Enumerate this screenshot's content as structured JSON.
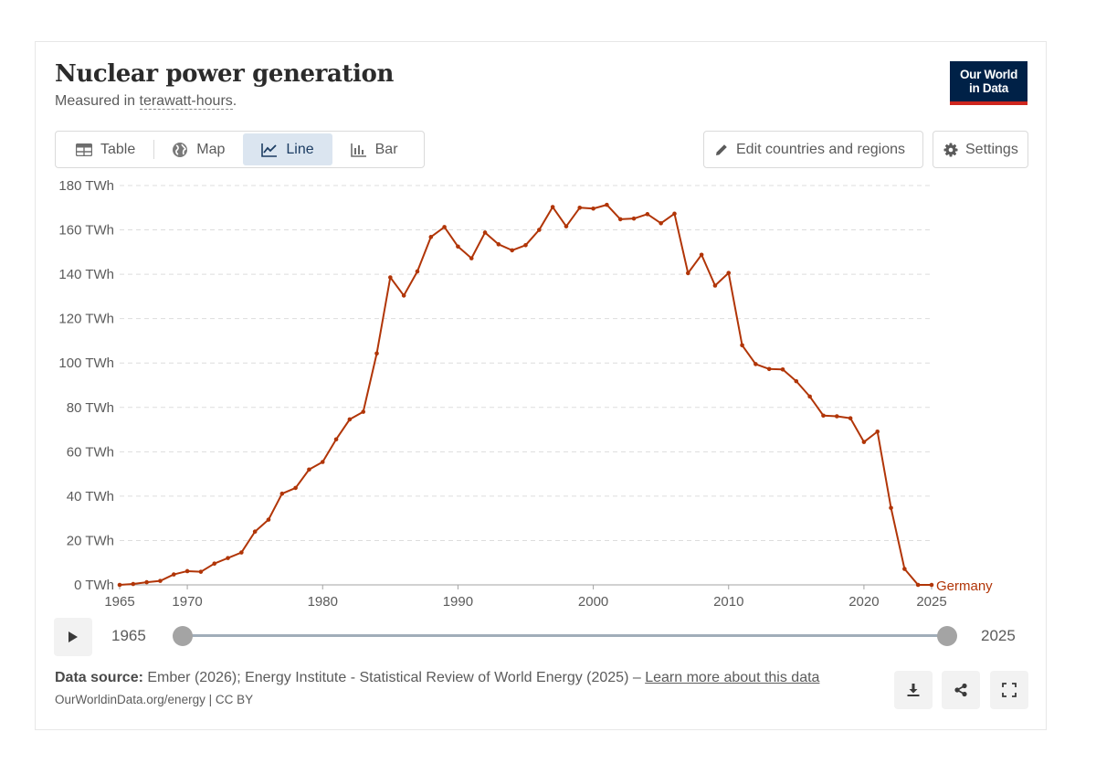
{
  "header": {
    "title": "Nuclear power generation",
    "subtitle_prefix": "Measured in ",
    "subtitle_unit": "terawatt-hours",
    "subtitle_suffix": ".",
    "logo_line1": "Our World",
    "logo_line2": "in Data"
  },
  "tabs": [
    {
      "label": "Table",
      "icon": "table-icon"
    },
    {
      "label": "Map",
      "icon": "globe-icon"
    },
    {
      "label": "Line",
      "icon": "line-chart-icon",
      "active": true
    },
    {
      "label": "Bar",
      "icon": "bar-chart-icon"
    }
  ],
  "controls": {
    "edit_label": "Edit countries and regions",
    "settings_label": "Settings"
  },
  "timeline": {
    "start_year": "1965",
    "end_year": "2025"
  },
  "footer": {
    "source_label": "Data source:",
    "source_text": " Ember (2026); Energy Institute - Statistical Review of World Energy (2025) – ",
    "learn_more": "Learn more about this data",
    "credit": "OurWorldinData.org/energy | CC BY"
  },
  "colors": {
    "series": "#b13507",
    "logo_bg": "#002147",
    "logo_accent": "#ce261e",
    "grid": "#dddddd"
  },
  "chart_data": {
    "type": "line",
    "title": "Nuclear power generation",
    "ylabel": "TWh",
    "xlabel": "",
    "xlim": [
      1965,
      2025
    ],
    "ylim": [
      0,
      180
    ],
    "y_ticks": [
      0,
      20,
      40,
      60,
      80,
      100,
      120,
      140,
      160,
      180
    ],
    "y_tick_labels": [
      "0 TWh",
      "20 TWh",
      "40 TWh",
      "60 TWh",
      "80 TWh",
      "100 TWh",
      "120 TWh",
      "140 TWh",
      "160 TWh",
      "180 TWh"
    ],
    "x_ticks": [
      1965,
      1970,
      1980,
      1990,
      2000,
      2010,
      2020,
      2025
    ],
    "x_tick_labels": [
      "1965",
      "1970",
      "1980",
      "1990",
      "2000",
      "2010",
      "2020",
      "2025"
    ],
    "grid": true,
    "series": [
      {
        "name": "Germany",
        "x": [
          1965,
          1966,
          1967,
          1968,
          1969,
          1970,
          1971,
          1972,
          1973,
          1974,
          1975,
          1976,
          1977,
          1978,
          1979,
          1980,
          1981,
          1982,
          1983,
          1984,
          1985,
          1986,
          1987,
          1988,
          1989,
          1990,
          1991,
          1992,
          1993,
          1994,
          1995,
          1996,
          1997,
          1998,
          1999,
          2000,
          2001,
          2002,
          2003,
          2004,
          2005,
          2006,
          2007,
          2008,
          2009,
          2010,
          2011,
          2012,
          2013,
          2014,
          2015,
          2016,
          2017,
          2018,
          2019,
          2020,
          2021,
          2022,
          2023,
          2024,
          2025
        ],
        "values": [
          0.0,
          0.4,
          1.2,
          1.8,
          4.7,
          6.2,
          5.9,
          9.6,
          12.1,
          14.6,
          24.0,
          29.4,
          41.1,
          43.7,
          52.0,
          55.4,
          65.6,
          74.6,
          78.0,
          104.3,
          138.6,
          130.4,
          141.3,
          156.8,
          161.3,
          152.5,
          147.2,
          158.8,
          153.5,
          150.8,
          153.1,
          160.0,
          170.3,
          161.6,
          170.0,
          169.6,
          171.3,
          164.8,
          165.1,
          167.1,
          163.0,
          167.3,
          140.5,
          148.8,
          134.9,
          140.6,
          108.0,
          99.5,
          97.3,
          97.1,
          91.8,
          84.9,
          76.3,
          76.0,
          75.1,
          64.4,
          69.1,
          34.7,
          7.2,
          0.0,
          0.0
        ]
      }
    ]
  }
}
